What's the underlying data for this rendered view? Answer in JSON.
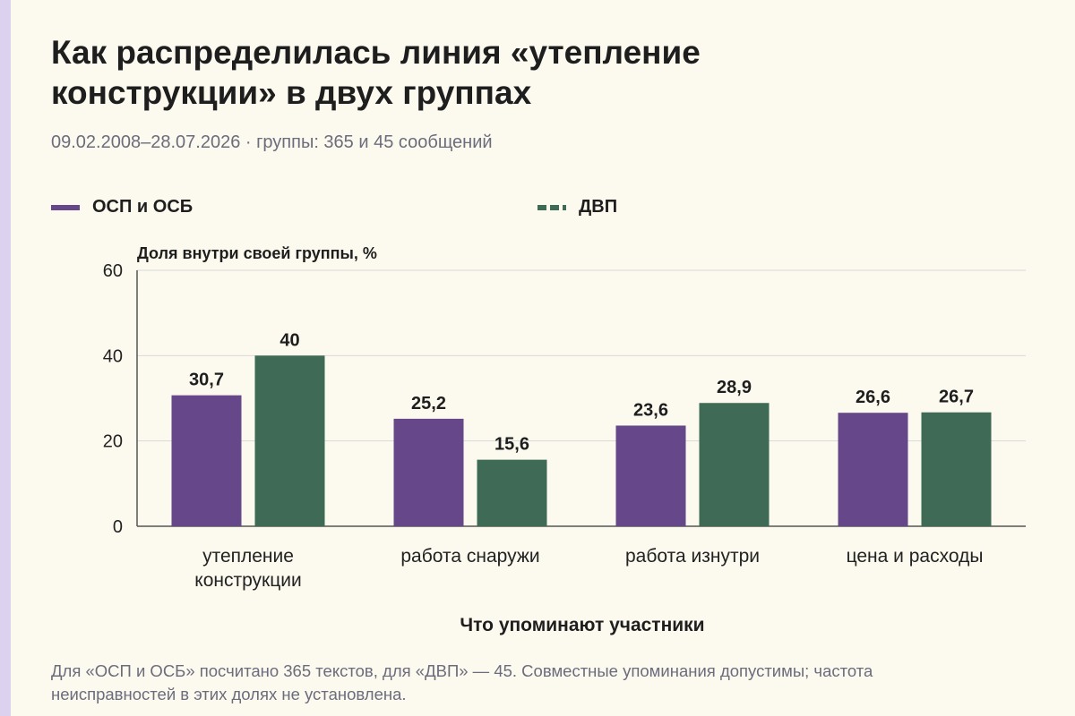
{
  "title": "Как распределилась линия «утепление конструкции» в двух группах",
  "subtitle": "09.02.2008–28.07.2026 · группы: 365 и 45 сообщений",
  "note": "Для «ОСП и ОСБ» посчитано 365 текстов, для «ДВП» — 45. Совместные упоминания допустимы; частота неисправностей в этих долях не установлена.",
  "colors": {
    "series_a": "#65478a",
    "series_b": "#3f6a55",
    "grid": "#d9d9d9",
    "axis": "#555555"
  },
  "chart_data": {
    "type": "bar",
    "ylabel": "Доля внутри своей группы, %",
    "xlabel": "Что упоминают участники",
    "ylim": [
      0,
      60
    ],
    "yticks": [
      0,
      20,
      40,
      60
    ],
    "grid": true,
    "legend": "top",
    "categories": [
      [
        "утепление",
        "конструкции"
      ],
      [
        "работа снаружи"
      ],
      [
        "работа изнутри"
      ],
      [
        "цена и расходы"
      ]
    ],
    "series": [
      {
        "name": "ОСП и ОСБ",
        "values": [
          30.7,
          25.2,
          23.6,
          26.6
        ],
        "labels": [
          "30,7",
          "25,2",
          "23,6",
          "26,6"
        ]
      },
      {
        "name": "ДВП",
        "values": [
          40,
          15.6,
          28.9,
          26.7
        ],
        "labels": [
          "40",
          "15,6",
          "28,9",
          "26,7"
        ]
      }
    ]
  }
}
